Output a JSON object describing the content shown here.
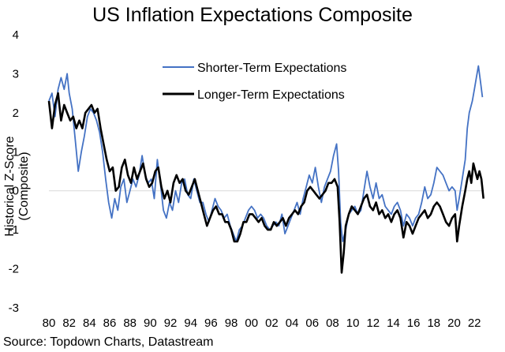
{
  "chart_data": {
    "type": "line",
    "title": "US Inflation Expectations Composite",
    "xlabel": "",
    "ylabel": "Historical Z-Score (Composite)",
    "source": "Source: Topdown Charts, Datastream",
    "xlim": [
      1980,
      2023
    ],
    "ylim": [
      -3,
      4
    ],
    "y_ticks": [
      "-3",
      "-2",
      "-1",
      "0",
      "1",
      "2",
      "3",
      "4"
    ],
    "x_ticks": [
      "80",
      "82",
      "84",
      "86",
      "88",
      "90",
      "92",
      "94",
      "96",
      "98",
      "00",
      "02",
      "04",
      "06",
      "08",
      "10",
      "12",
      "14",
      "16",
      "18",
      "20",
      "22"
    ],
    "zero_line": true,
    "legend_position": "top-right",
    "series": [
      {
        "name": "Shorter-Term Expectations",
        "color": "#4472C4",
        "points": [
          [
            1980.0,
            2.3
          ],
          [
            1980.3,
            2.5
          ],
          [
            1980.6,
            1.9
          ],
          [
            1980.9,
            2.6
          ],
          [
            1981.2,
            2.9
          ],
          [
            1981.5,
            2.6
          ],
          [
            1981.8,
            3.0
          ],
          [
            1982.0,
            2.5
          ],
          [
            1982.3,
            2.1
          ],
          [
            1982.6,
            1.3
          ],
          [
            1982.9,
            0.5
          ],
          [
            1983.2,
            1.0
          ],
          [
            1983.5,
            1.4
          ],
          [
            1983.8,
            1.9
          ],
          [
            1984.1,
            2.1
          ],
          [
            1984.4,
            2.0
          ],
          [
            1984.7,
            1.8
          ],
          [
            1985.0,
            1.5
          ],
          [
            1985.3,
            1.0
          ],
          [
            1985.6,
            0.3
          ],
          [
            1985.9,
            -0.3
          ],
          [
            1986.2,
            -0.7
          ],
          [
            1986.5,
            -0.2
          ],
          [
            1986.8,
            -0.5
          ],
          [
            1987.1,
            0.1
          ],
          [
            1987.4,
            0.3
          ],
          [
            1987.7,
            -0.3
          ],
          [
            1988.0,
            0.0
          ],
          [
            1988.3,
            0.3
          ],
          [
            1988.6,
            0.1
          ],
          [
            1988.9,
            0.4
          ],
          [
            1989.2,
            0.9
          ],
          [
            1989.5,
            0.4
          ],
          [
            1989.8,
            0.2
          ],
          [
            1990.1,
            0.3
          ],
          [
            1990.4,
            -0.2
          ],
          [
            1990.7,
            0.8
          ],
          [
            1991.0,
            0.2
          ],
          [
            1991.3,
            -0.5
          ],
          [
            1991.6,
            -0.7
          ],
          [
            1991.9,
            -0.3
          ],
          [
            1992.2,
            -0.5
          ],
          [
            1992.5,
            0.0
          ],
          [
            1992.8,
            -0.3
          ],
          [
            1993.1,
            0.2
          ],
          [
            1993.4,
            0.3
          ],
          [
            1993.7,
            -0.1
          ],
          [
            1994.0,
            -0.2
          ],
          [
            1994.3,
            0.3
          ],
          [
            1994.6,
            0.0
          ],
          [
            1994.9,
            -0.3
          ],
          [
            1995.2,
            -0.3
          ],
          [
            1995.5,
            -0.6
          ],
          [
            1995.8,
            -0.8
          ],
          [
            1996.1,
            -0.5
          ],
          [
            1996.4,
            -0.2
          ],
          [
            1996.7,
            -0.4
          ],
          [
            1997.0,
            -0.5
          ],
          [
            1997.3,
            -0.7
          ],
          [
            1997.6,
            -0.6
          ],
          [
            1997.9,
            -0.9
          ],
          [
            1998.2,
            -1.1
          ],
          [
            1998.5,
            -1.3
          ],
          [
            1998.8,
            -1.0
          ],
          [
            1999.1,
            -0.9
          ],
          [
            1999.4,
            -0.7
          ],
          [
            1999.7,
            -0.5
          ],
          [
            2000.0,
            -0.4
          ],
          [
            2000.3,
            -0.5
          ],
          [
            2000.6,
            -0.7
          ],
          [
            2000.9,
            -0.6
          ],
          [
            2001.2,
            -0.7
          ],
          [
            2001.5,
            -0.9
          ],
          [
            2001.8,
            -1.0
          ],
          [
            2002.1,
            -0.9
          ],
          [
            2002.4,
            -0.8
          ],
          [
            2002.7,
            -0.9
          ],
          [
            2003.0,
            -0.6
          ],
          [
            2003.3,
            -1.1
          ],
          [
            2003.6,
            -0.9
          ],
          [
            2003.9,
            -0.7
          ],
          [
            2004.2,
            -0.5
          ],
          [
            2004.5,
            -0.3
          ],
          [
            2004.8,
            -0.6
          ],
          [
            2005.1,
            -0.2
          ],
          [
            2005.4,
            0.1
          ],
          [
            2005.7,
            0.4
          ],
          [
            2006.0,
            0.2
          ],
          [
            2006.3,
            0.6
          ],
          [
            2006.6,
            0.1
          ],
          [
            2006.9,
            -0.3
          ],
          [
            2007.2,
            0.1
          ],
          [
            2007.5,
            0.3
          ],
          [
            2007.8,
            0.5
          ],
          [
            2008.1,
            0.9
          ],
          [
            2008.4,
            1.2
          ],
          [
            2008.6,
            0.5
          ],
          [
            2008.8,
            -0.8
          ],
          [
            2009.0,
            -1.3
          ],
          [
            2009.3,
            -1.0
          ],
          [
            2009.6,
            -0.6
          ],
          [
            2009.9,
            -0.5
          ],
          [
            2010.2,
            -0.4
          ],
          [
            2010.5,
            -0.6
          ],
          [
            2010.8,
            -0.5
          ],
          [
            2011.1,
            0.0
          ],
          [
            2011.4,
            0.5
          ],
          [
            2011.7,
            0.1
          ],
          [
            2012.0,
            -0.2
          ],
          [
            2012.3,
            0.2
          ],
          [
            2012.6,
            -0.2
          ],
          [
            2012.9,
            -0.1
          ],
          [
            2013.2,
            -0.4
          ],
          [
            2013.5,
            -0.5
          ],
          [
            2013.8,
            -0.6
          ],
          [
            2014.1,
            -0.4
          ],
          [
            2014.4,
            -0.3
          ],
          [
            2014.7,
            -0.5
          ],
          [
            2015.0,
            -0.9
          ],
          [
            2015.3,
            -0.6
          ],
          [
            2015.6,
            -0.7
          ],
          [
            2015.9,
            -0.9
          ],
          [
            2016.2,
            -0.7
          ],
          [
            2016.5,
            -0.6
          ],
          [
            2016.8,
            -0.3
          ],
          [
            2017.1,
            0.1
          ],
          [
            2017.4,
            -0.2
          ],
          [
            2017.7,
            -0.1
          ],
          [
            2018.0,
            0.2
          ],
          [
            2018.3,
            0.6
          ],
          [
            2018.6,
            0.5
          ],
          [
            2018.9,
            0.4
          ],
          [
            2019.2,
            0.2
          ],
          [
            2019.5,
            0.0
          ],
          [
            2019.8,
            0.1
          ],
          [
            2020.1,
            0.0
          ],
          [
            2020.3,
            -0.5
          ],
          [
            2020.5,
            -0.2
          ],
          [
            2020.8,
            0.3
          ],
          [
            2021.1,
            0.8
          ],
          [
            2021.3,
            1.6
          ],
          [
            2021.5,
            2.0
          ],
          [
            2021.8,
            2.3
          ],
          [
            2022.0,
            2.6
          ],
          [
            2022.2,
            2.9
          ],
          [
            2022.4,
            3.2
          ],
          [
            2022.6,
            2.8
          ],
          [
            2022.8,
            2.4
          ]
        ]
      },
      {
        "name": "Longer-Term Expectations",
        "color": "#000000",
        "points": [
          [
            1980.0,
            2.3
          ],
          [
            1980.3,
            1.6
          ],
          [
            1980.6,
            2.2
          ],
          [
            1980.9,
            2.5
          ],
          [
            1981.2,
            1.8
          ],
          [
            1981.5,
            2.2
          ],
          [
            1981.8,
            2.0
          ],
          [
            1982.1,
            1.8
          ],
          [
            1982.4,
            1.9
          ],
          [
            1982.7,
            1.6
          ],
          [
            1983.0,
            1.8
          ],
          [
            1983.3,
            1.6
          ],
          [
            1983.6,
            2.0
          ],
          [
            1983.9,
            2.1
          ],
          [
            1984.2,
            2.2
          ],
          [
            1984.5,
            2.0
          ],
          [
            1984.8,
            2.1
          ],
          [
            1985.1,
            1.6
          ],
          [
            1985.4,
            1.2
          ],
          [
            1985.7,
            0.8
          ],
          [
            1986.0,
            0.5
          ],
          [
            1986.3,
            0.6
          ],
          [
            1986.6,
            0.0
          ],
          [
            1986.9,
            0.1
          ],
          [
            1987.2,
            0.6
          ],
          [
            1987.5,
            0.8
          ],
          [
            1987.8,
            0.4
          ],
          [
            1988.1,
            0.2
          ],
          [
            1988.4,
            0.6
          ],
          [
            1988.7,
            0.3
          ],
          [
            1989.0,
            0.5
          ],
          [
            1989.3,
            0.7
          ],
          [
            1989.6,
            0.3
          ],
          [
            1989.9,
            0.1
          ],
          [
            1990.2,
            0.2
          ],
          [
            1990.5,
            0.5
          ],
          [
            1990.8,
            0.6
          ],
          [
            1991.1,
            0.1
          ],
          [
            1991.4,
            -0.2
          ],
          [
            1991.7,
            0.0
          ],
          [
            1992.0,
            -0.3
          ],
          [
            1992.3,
            0.2
          ],
          [
            1992.6,
            0.4
          ],
          [
            1992.9,
            0.2
          ],
          [
            1993.2,
            0.3
          ],
          [
            1993.5,
            0.0
          ],
          [
            1993.8,
            -0.1
          ],
          [
            1994.1,
            0.1
          ],
          [
            1994.4,
            0.3
          ],
          [
            1994.7,
            0.0
          ],
          [
            1995.0,
            -0.3
          ],
          [
            1995.3,
            -0.6
          ],
          [
            1995.6,
            -0.9
          ],
          [
            1995.9,
            -0.7
          ],
          [
            1996.2,
            -0.5
          ],
          [
            1996.5,
            -0.4
          ],
          [
            1996.8,
            -0.6
          ],
          [
            1997.1,
            -0.6
          ],
          [
            1997.4,
            -0.8
          ],
          [
            1997.7,
            -0.8
          ],
          [
            1998.0,
            -1.0
          ],
          [
            1998.3,
            -1.3
          ],
          [
            1998.6,
            -1.3
          ],
          [
            1998.9,
            -1.1
          ],
          [
            1999.2,
            -0.8
          ],
          [
            1999.5,
            -0.8
          ],
          [
            1999.8,
            -0.6
          ],
          [
            2000.1,
            -0.6
          ],
          [
            2000.4,
            -0.7
          ],
          [
            2000.7,
            -0.8
          ],
          [
            2001.0,
            -0.7
          ],
          [
            2001.3,
            -0.9
          ],
          [
            2001.6,
            -1.0
          ],
          [
            2001.9,
            -1.0
          ],
          [
            2002.2,
            -0.8
          ],
          [
            2002.5,
            -0.9
          ],
          [
            2002.8,
            -0.8
          ],
          [
            2003.1,
            -0.7
          ],
          [
            2003.4,
            -0.9
          ],
          [
            2003.7,
            -0.7
          ],
          [
            2004.0,
            -0.6
          ],
          [
            2004.3,
            -0.5
          ],
          [
            2004.6,
            -0.6
          ],
          [
            2004.9,
            -0.4
          ],
          [
            2005.2,
            -0.3
          ],
          [
            2005.5,
            0.0
          ],
          [
            2005.8,
            0.1
          ],
          [
            2006.1,
            0.0
          ],
          [
            2006.4,
            -0.1
          ],
          [
            2006.7,
            -0.2
          ],
          [
            2007.0,
            -0.1
          ],
          [
            2007.3,
            0.0
          ],
          [
            2007.6,
            0.2
          ],
          [
            2007.9,
            0.2
          ],
          [
            2008.2,
            0.3
          ],
          [
            2008.5,
            0.1
          ],
          [
            2008.7,
            -0.8
          ],
          [
            2008.9,
            -2.1
          ],
          [
            2009.1,
            -1.6
          ],
          [
            2009.3,
            -0.9
          ],
          [
            2009.6,
            -0.6
          ],
          [
            2009.9,
            -0.4
          ],
          [
            2010.2,
            -0.5
          ],
          [
            2010.5,
            -0.6
          ],
          [
            2010.8,
            -0.4
          ],
          [
            2011.1,
            -0.2
          ],
          [
            2011.4,
            -0.1
          ],
          [
            2011.7,
            -0.4
          ],
          [
            2012.0,
            -0.5
          ],
          [
            2012.3,
            -0.3
          ],
          [
            2012.6,
            -0.6
          ],
          [
            2012.9,
            -0.5
          ],
          [
            2013.2,
            -0.7
          ],
          [
            2013.5,
            -0.6
          ],
          [
            2013.8,
            -0.8
          ],
          [
            2014.1,
            -0.6
          ],
          [
            2014.4,
            -0.5
          ],
          [
            2014.7,
            -0.7
          ],
          [
            2015.0,
            -1.2
          ],
          [
            2015.3,
            -0.8
          ],
          [
            2015.6,
            -0.9
          ],
          [
            2015.9,
            -1.1
          ],
          [
            2016.2,
            -0.9
          ],
          [
            2016.5,
            -0.7
          ],
          [
            2016.8,
            -0.6
          ],
          [
            2017.1,
            -0.5
          ],
          [
            2017.4,
            -0.7
          ],
          [
            2017.7,
            -0.6
          ],
          [
            2018.0,
            -0.4
          ],
          [
            2018.3,
            -0.3
          ],
          [
            2018.6,
            -0.4
          ],
          [
            2018.9,
            -0.6
          ],
          [
            2019.2,
            -0.8
          ],
          [
            2019.5,
            -0.9
          ],
          [
            2019.8,
            -0.7
          ],
          [
            2020.1,
            -0.6
          ],
          [
            2020.3,
            -1.3
          ],
          [
            2020.5,
            -0.9
          ],
          [
            2020.8,
            -0.4
          ],
          [
            2021.1,
            0.0
          ],
          [
            2021.3,
            0.3
          ],
          [
            2021.5,
            0.5
          ],
          [
            2021.7,
            0.2
          ],
          [
            2021.9,
            0.7
          ],
          [
            2022.1,
            0.5
          ],
          [
            2022.3,
            0.3
          ],
          [
            2022.5,
            0.5
          ],
          [
            2022.7,
            0.3
          ],
          [
            2022.9,
            -0.2
          ]
        ]
      }
    ]
  }
}
